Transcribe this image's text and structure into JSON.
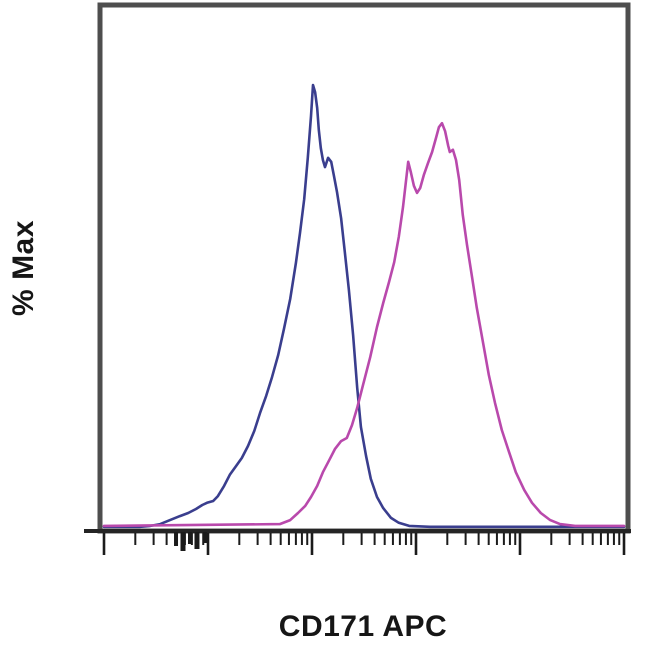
{
  "figure": {
    "kind": "flow-cytometry-histogram-overlay",
    "background_color": "#ffffff",
    "frame_color": "#4e4e4e",
    "axis_color": "#242424",
    "tick_color": "#1b1b1b",
    "text_color": "#161616"
  },
  "labels": {
    "y_axis": "% Max",
    "x_axis": "CD171 APC"
  },
  "chart_data": {
    "type": "line",
    "subtype": "overlaid-histogram",
    "title": "",
    "xlabel": "CD171 APC",
    "ylabel": "% Max",
    "x_scale": "log",
    "x_decades": 5,
    "x_range_normalized": [
      0,
      1
    ],
    "ylim_percent": [
      0,
      100
    ],
    "grid": false,
    "legend_position": "none",
    "series": [
      {
        "name": "unstained-control-blue",
        "color": "#3a3e8e",
        "points": [
          [
            0.0,
            0.5
          ],
          [
            0.069,
            0.5
          ],
          [
            0.089,
            0.7
          ],
          [
            0.108,
            1.1
          ],
          [
            0.127,
            2.0
          ],
          [
            0.146,
            2.9
          ],
          [
            0.162,
            3.6
          ],
          [
            0.177,
            4.5
          ],
          [
            0.189,
            5.4
          ],
          [
            0.198,
            5.9
          ],
          [
            0.21,
            6.3
          ],
          [
            0.219,
            7.4
          ],
          [
            0.231,
            9.7
          ],
          [
            0.242,
            12.2
          ],
          [
            0.254,
            14.2
          ],
          [
            0.265,
            16.0
          ],
          [
            0.277,
            18.7
          ],
          [
            0.289,
            22.1
          ],
          [
            0.3,
            26.1
          ],
          [
            0.312,
            30.0
          ],
          [
            0.323,
            34.2
          ],
          [
            0.335,
            39.2
          ],
          [
            0.346,
            45.0
          ],
          [
            0.358,
            51.8
          ],
          [
            0.369,
            59.9
          ],
          [
            0.377,
            66.7
          ],
          [
            0.385,
            74.3
          ],
          [
            0.392,
            83.6
          ],
          [
            0.398,
            93.0
          ],
          [
            0.402,
            100.0
          ],
          [
            0.406,
            98.4
          ],
          [
            0.41,
            94.8
          ],
          [
            0.413,
            89.9
          ],
          [
            0.417,
            85.8
          ],
          [
            0.421,
            83.1
          ],
          [
            0.425,
            81.5
          ],
          [
            0.431,
            83.6
          ],
          [
            0.437,
            82.7
          ],
          [
            0.442,
            79.7
          ],
          [
            0.448,
            75.9
          ],
          [
            0.456,
            70.0
          ],
          [
            0.463,
            62.4
          ],
          [
            0.471,
            53.8
          ],
          [
            0.479,
            43.7
          ],
          [
            0.487,
            31.8
          ],
          [
            0.494,
            23.0
          ],
          [
            0.504,
            16.4
          ],
          [
            0.513,
            11.3
          ],
          [
            0.525,
            7.2
          ],
          [
            0.537,
            4.7
          ],
          [
            0.552,
            2.5
          ],
          [
            0.567,
            1.4
          ],
          [
            0.587,
            0.7
          ],
          [
            0.627,
            0.5
          ],
          [
            1.0,
            0.5
          ]
        ]
      },
      {
        "name": "cd171-apc-stained-magenta",
        "color": "#b949ac",
        "points": [
          [
            0.0,
            0.7
          ],
          [
            0.338,
            1.1
          ],
          [
            0.358,
            2.0
          ],
          [
            0.373,
            3.6
          ],
          [
            0.387,
            5.2
          ],
          [
            0.398,
            7.2
          ],
          [
            0.41,
            9.7
          ],
          [
            0.421,
            12.8
          ],
          [
            0.433,
            15.5
          ],
          [
            0.444,
            18.0
          ],
          [
            0.456,
            19.8
          ],
          [
            0.467,
            20.5
          ],
          [
            0.477,
            23.4
          ],
          [
            0.487,
            27.3
          ],
          [
            0.498,
            32.4
          ],
          [
            0.512,
            38.7
          ],
          [
            0.525,
            45.5
          ],
          [
            0.537,
            50.9
          ],
          [
            0.548,
            55.6
          ],
          [
            0.558,
            60.1
          ],
          [
            0.567,
            65.8
          ],
          [
            0.575,
            72.5
          ],
          [
            0.581,
            78.6
          ],
          [
            0.585,
            82.7
          ],
          [
            0.59,
            80.4
          ],
          [
            0.596,
            77.3
          ],
          [
            0.602,
            75.7
          ],
          [
            0.608,
            76.8
          ],
          [
            0.615,
            79.7
          ],
          [
            0.623,
            82.4
          ],
          [
            0.631,
            84.9
          ],
          [
            0.639,
            88.3
          ],
          [
            0.644,
            90.5
          ],
          [
            0.65,
            91.4
          ],
          [
            0.656,
            89.6
          ],
          [
            0.662,
            86.3
          ],
          [
            0.665,
            84.9
          ],
          [
            0.671,
            85.4
          ],
          [
            0.677,
            83.1
          ],
          [
            0.683,
            78.6
          ],
          [
            0.69,
            70.7
          ],
          [
            0.698,
            64.0
          ],
          [
            0.708,
            56.5
          ],
          [
            0.717,
            49.8
          ],
          [
            0.729,
            41.9
          ],
          [
            0.74,
            34.7
          ],
          [
            0.752,
            28.4
          ],
          [
            0.765,
            22.3
          ],
          [
            0.779,
            17.3
          ],
          [
            0.792,
            12.8
          ],
          [
            0.808,
            8.8
          ],
          [
            0.823,
            5.9
          ],
          [
            0.84,
            3.6
          ],
          [
            0.858,
            2.0
          ],
          [
            0.877,
            1.1
          ],
          [
            0.906,
            0.7
          ],
          [
            1.0,
            0.7
          ]
        ]
      }
    ],
    "axis_smudge_marks": [
      {
        "nx": 0.1385,
        "len": 14,
        "w": 4
      },
      {
        "nx": 0.1519,
        "len": 19,
        "w": 5
      },
      {
        "nx": 0.1654,
        "len": 12,
        "w": 4
      },
      {
        "nx": 0.1788,
        "len": 17,
        "w": 5
      },
      {
        "nx": 0.1942,
        "len": 11,
        "w": 4
      }
    ]
  }
}
